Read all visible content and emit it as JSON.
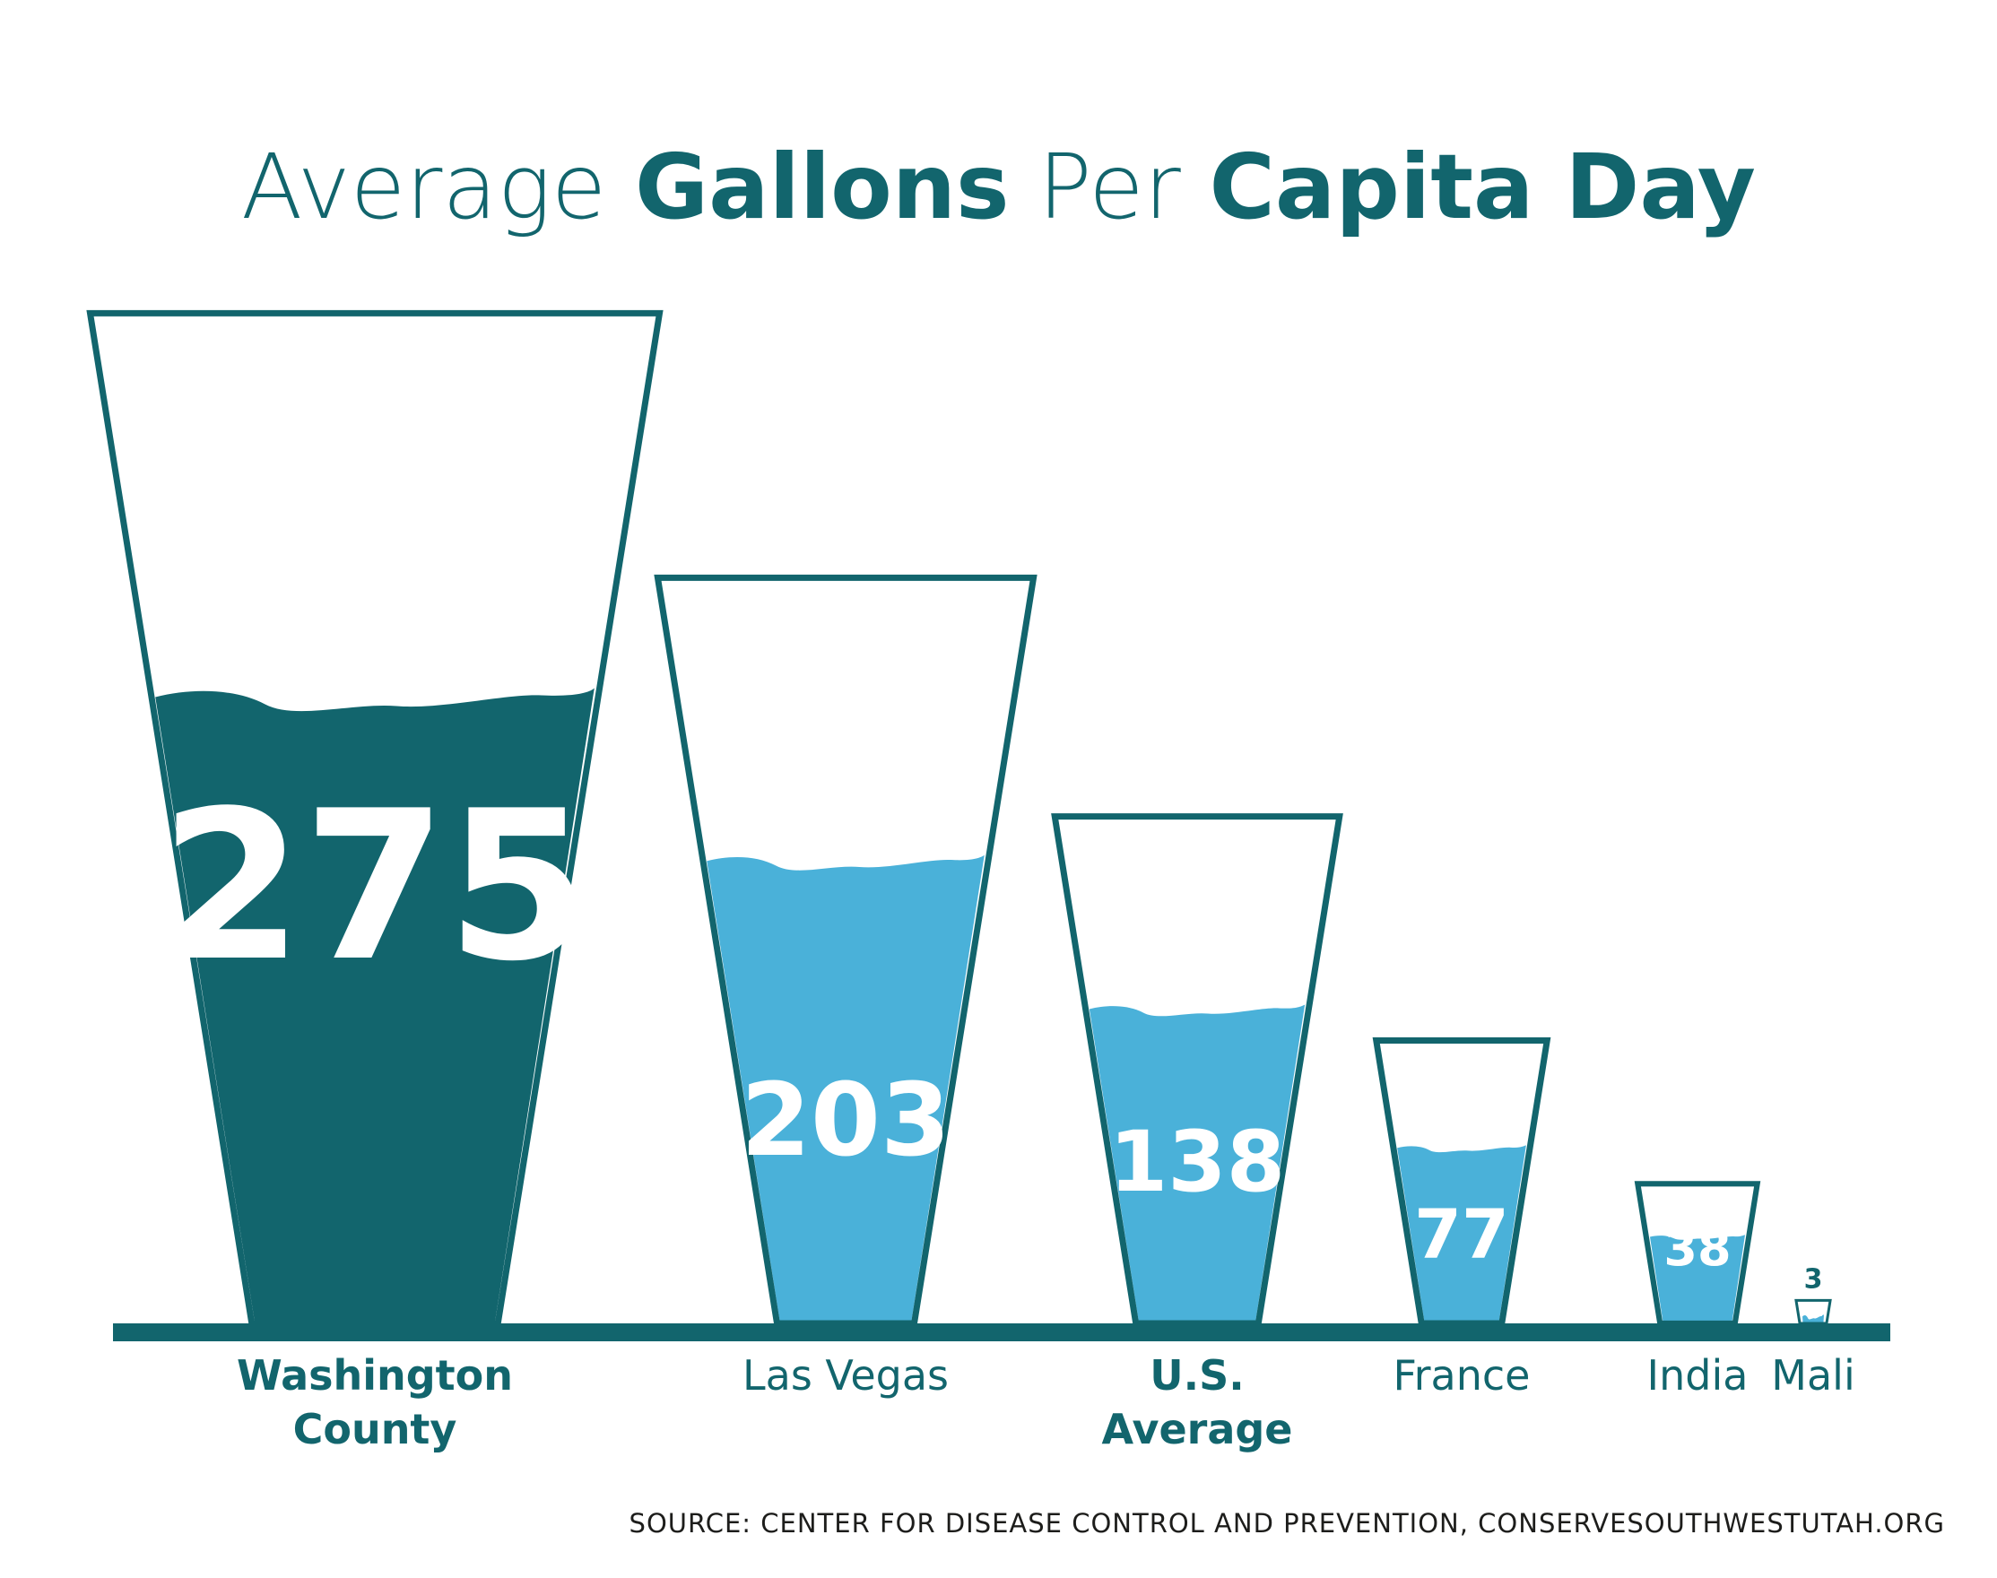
{
  "chart_data": {
    "type": "bar",
    "title_parts": [
      {
        "text": "Average ",
        "bold": false
      },
      {
        "text": "Gallons",
        "bold": true
      },
      {
        "text": " Per ",
        "bold": false
      },
      {
        "text": "Capita Day",
        "bold": true
      }
    ],
    "categories": [
      "Washington County",
      "Las Vegas",
      "U.S. Average",
      "France",
      "India",
      "Mali"
    ],
    "category_label_lines": [
      [
        "Washington",
        "County"
      ],
      [
        "Las Vegas"
      ],
      [
        "U.S.",
        "Average"
      ],
      [
        "France"
      ],
      [
        "India"
      ],
      [
        "Mali"
      ]
    ],
    "category_label_bold": [
      true,
      false,
      true,
      false,
      false,
      false
    ],
    "values": [
      275,
      203,
      138,
      77,
      38,
      3
    ],
    "value_labels": [
      "275",
      "203",
      "138",
      "77",
      "38",
      "3"
    ],
    "highlight": [
      true,
      false,
      false,
      false,
      false,
      false
    ],
    "ylabel": "",
    "xlabel": "",
    "grid": false,
    "legend": false
  },
  "source": "SOURCE: CENTER FOR DISEASE CONTROL AND PREVENTION, CONSERVESOUTHWESTUTAH.ORG",
  "colors": {
    "dark_teal": "#12656d",
    "light_blue": "#4ab1d9",
    "text_dark": "#1d1d1b",
    "background": "#ffffff"
  }
}
